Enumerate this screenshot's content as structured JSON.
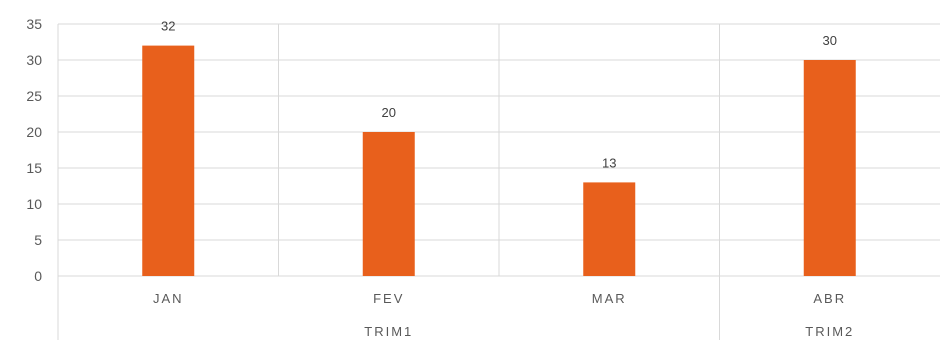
{
  "chart_data": {
    "type": "bar",
    "categories": [
      "JAN",
      "FEV",
      "MAR",
      "ABR"
    ],
    "groups": [
      {
        "label": "TRIM1",
        "categories": [
          "JAN",
          "FEV",
          "MAR"
        ]
      },
      {
        "label": "TRIM2",
        "categories": [
          "ABR"
        ]
      }
    ],
    "series": [
      {
        "values": [
          32,
          20,
          13,
          30
        ],
        "data_labels": [
          "32",
          "20",
          "13",
          "30"
        ]
      }
    ],
    "y_ticks": [
      "0",
      "5",
      "10",
      "15",
      "20",
      "25",
      "30",
      "35"
    ],
    "ylim": [
      0,
      35
    ],
    "grid": true,
    "bar_color": "#E8601C",
    "gridline_color": "#D9D9D9",
    "title": "",
    "xlabel": "",
    "ylabel": ""
  }
}
